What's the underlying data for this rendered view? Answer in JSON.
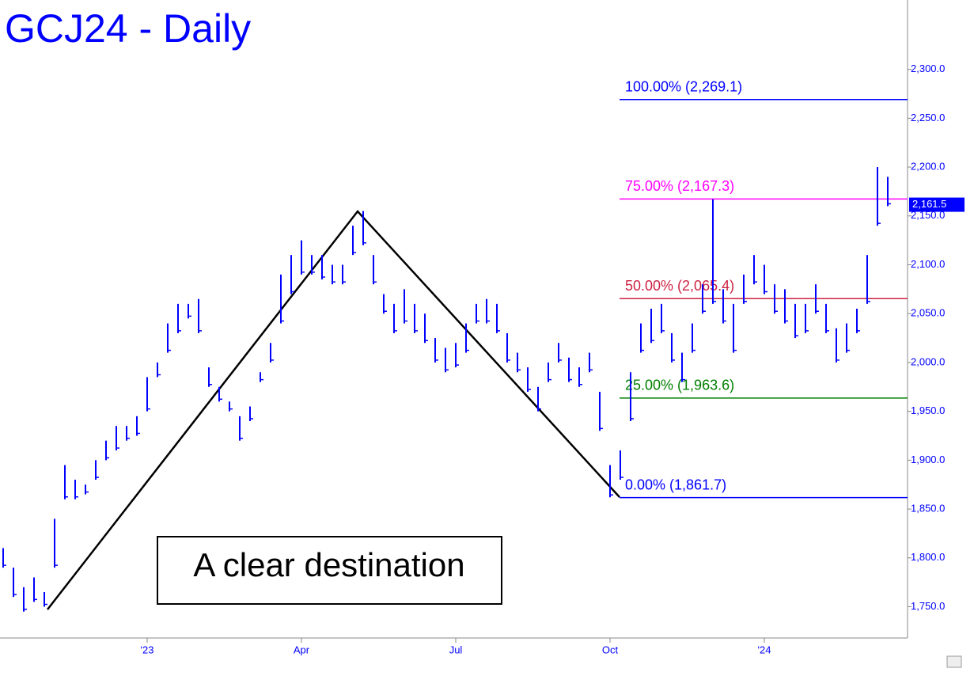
{
  "chart_data": {
    "type": "range",
    "title": "GCJ24 - Daily",
    "color": "#0000ff",
    "categories": [
      null,
      null,
      null,
      null,
      null,
      null,
      null,
      null,
      null,
      null,
      null,
      null,
      null,
      null,
      "'23",
      null,
      null,
      null,
      null,
      null,
      null,
      null,
      null,
      null,
      null,
      null,
      null,
      null,
      null,
      "Apr",
      null,
      null,
      null,
      null,
      null,
      null,
      null,
      null,
      null,
      null,
      null,
      null,
      null,
      null,
      "Jul",
      null,
      null,
      null,
      null,
      null,
      null,
      null,
      null,
      null,
      null,
      null,
      null,
      null,
      null,
      "Oct",
      null,
      null,
      null,
      null,
      null,
      null,
      null,
      null,
      null,
      null,
      null,
      null,
      null,
      null,
      "'24",
      null,
      null,
      null,
      null,
      null,
      null,
      null,
      null,
      null,
      null,
      null,
      null
    ],
    "high": [
      1810,
      1790,
      1770,
      1780,
      1765,
      1840,
      1895,
      1880,
      1875,
      1900,
      1920,
      1935,
      1935,
      1945,
      1985,
      2000,
      2040,
      2060,
      2060,
      2065,
      1995,
      1975,
      1960,
      1945,
      1955,
      1990,
      2020,
      2090,
      2110,
      2125,
      2110,
      2110,
      2100,
      2100,
      2140,
      2155,
      2110,
      2070,
      2060,
      2075,
      2060,
      2050,
      2025,
      2015,
      2020,
      2040,
      2060,
      2065,
      2060,
      2030,
      2010,
      1995,
      1975,
      2000,
      2020,
      2005,
      1995,
      2010,
      1970,
      1895,
      1910,
      1990,
      2040,
      2055,
      2060,
      2030,
      2010,
      2040,
      2080,
      2167,
      2075,
      2060,
      2090,
      2110,
      2100,
      2080,
      2075,
      2060,
      2060,
      2080,
      2060,
      2035,
      2040,
      2055,
      2110,
      2200,
      2190
    ],
    "low": [
      1790,
      1760,
      1745,
      1755,
      1750,
      1790,
      1860,
      1860,
      1865,
      1880,
      1900,
      1910,
      1920,
      1925,
      1950,
      1985,
      2010,
      2030,
      2045,
      2030,
      1975,
      1960,
      1950,
      1920,
      1940,
      1980,
      2000,
      2040,
      2070,
      2090,
      2090,
      2085,
      2080,
      2080,
      2110,
      2120,
      2080,
      2050,
      2030,
      2040,
      2030,
      2020,
      2000,
      1990,
      1995,
      2010,
      2040,
      2040,
      2030,
      2000,
      1990,
      1970,
      1950,
      1980,
      2000,
      1980,
      1975,
      1990,
      1930,
      1862,
      1880,
      1940,
      2010,
      2020,
      2030,
      2000,
      1980,
      2010,
      2050,
      2060,
      2040,
      2010,
      2060,
      2080,
      2070,
      2050,
      2040,
      2025,
      2030,
      2050,
      2030,
      2000,
      2010,
      2030,
      2060,
      2140,
      2160
    ],
    "ylim": [
      1718,
      2371
    ],
    "yticks": [
      {
        "value": 1750,
        "label": "1,750.0"
      },
      {
        "value": 1800,
        "label": "1,800.0"
      },
      {
        "value": 1850,
        "label": "1,850.0"
      },
      {
        "value": 1900,
        "label": "1,900.0"
      },
      {
        "value": 1950,
        "label": "1,950.0"
      },
      {
        "value": 2000,
        "label": "2,000.0"
      },
      {
        "value": 2050,
        "label": "2,050.0"
      },
      {
        "value": 2100,
        "label": "2,100.0"
      },
      {
        "value": 2150,
        "label": "2,150.0"
      },
      {
        "value": 2200,
        "label": "2,200.0"
      },
      {
        "value": 2250,
        "label": "2,250.0"
      },
      {
        "value": 2300,
        "label": "2,300.0"
      }
    ],
    "fib_levels": [
      {
        "label": "100.00% (2,269.1)",
        "value": 2269.1,
        "color": "#0000ff"
      },
      {
        "label": "75.00% (2,167.3)",
        "value": 2167.3,
        "color": "#ff00ff"
      },
      {
        "label": "50.00% (2,065.4)",
        "value": 2065.4,
        "color": "#cc2244"
      },
      {
        "label": "25.00% (1,963.6)",
        "value": 1963.6,
        "color": "#008000"
      },
      {
        "label": "0.00% (1,861.7)",
        "value": 1861.7,
        "color": "#0000ff"
      }
    ],
    "last_price": {
      "value": 2161.5,
      "label": "2,161.5"
    },
    "annotation": "A clear destination"
  }
}
